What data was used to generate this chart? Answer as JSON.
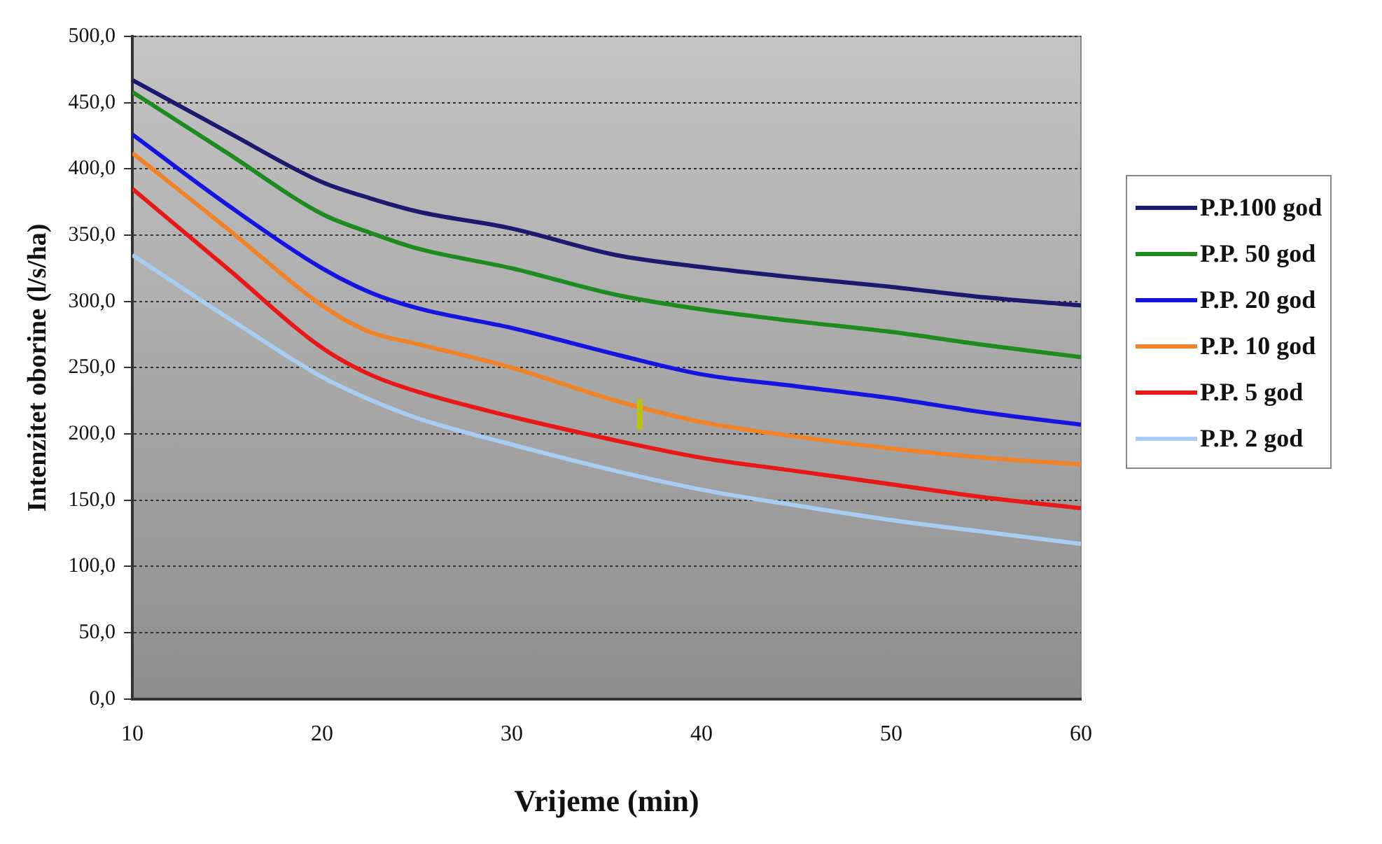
{
  "chart_data": {
    "type": "line",
    "xlabel": "Vrijeme (min)",
    "ylabel": "Intenzitet oborine (l/s/ha)",
    "x": [
      10,
      15,
      20,
      22.5,
      25,
      30,
      35.5,
      40,
      45,
      50,
      55,
      60
    ],
    "xlim": [
      10,
      60
    ],
    "xticks": [
      10,
      20,
      30,
      40,
      50,
      60
    ],
    "ylim": [
      0,
      500
    ],
    "yticks": [
      {
        "value": 0,
        "label": "0,0"
      },
      {
        "value": 50,
        "label": "50,0"
      },
      {
        "value": 100,
        "label": "100,0"
      },
      {
        "value": 150,
        "label": "150,0"
      },
      {
        "value": 200,
        "label": "200,0"
      },
      {
        "value": 250,
        "label": "250,0"
      },
      {
        "value": 300,
        "label": "300,0"
      },
      {
        "value": 350,
        "label": "350,0"
      },
      {
        "value": 400,
        "label": "400,0"
      },
      {
        "value": 450,
        "label": "450,0"
      },
      {
        "value": 500,
        "label": "500,0"
      }
    ],
    "grid": "y",
    "legend": "right",
    "marker": "none",
    "line_style": "solid",
    "series": [
      {
        "name": "P.P.100 god",
        "color": "#1a1a6e",
        "values": [
          467,
          428,
          390,
          378,
          368,
          355,
          335,
          326,
          318,
          311,
          303,
          297
        ]
      },
      {
        "name": "P.P. 50 god",
        "color": "#1f8a1f",
        "values": [
          458,
          412,
          366,
          352,
          340,
          325,
          305,
          294,
          285,
          277,
          267,
          258
        ]
      },
      {
        "name": "P.P. 20 god",
        "color": "#1515e0",
        "values": [
          426,
          373,
          325,
          307,
          295,
          280,
          260,
          245,
          236,
          227,
          216,
          207
        ]
      },
      {
        "name": "P.P. 10 god",
        "color": "#f08228",
        "values": [
          412,
          355,
          297,
          277,
          268,
          250,
          225,
          209,
          198,
          189,
          182,
          177
        ]
      },
      {
        "name": "P.P. 5 god",
        "color": "#e81818",
        "values": [
          385,
          325,
          265,
          245,
          232,
          213,
          195,
          182,
          172,
          162,
          152,
          144
        ]
      },
      {
        "name": "P.P. 2 god",
        "color": "#a8cdf0",
        "values": [
          335,
          288,
          243,
          226,
          212,
          192,
          172,
          158,
          146,
          135,
          126,
          117
        ]
      }
    ]
  }
}
